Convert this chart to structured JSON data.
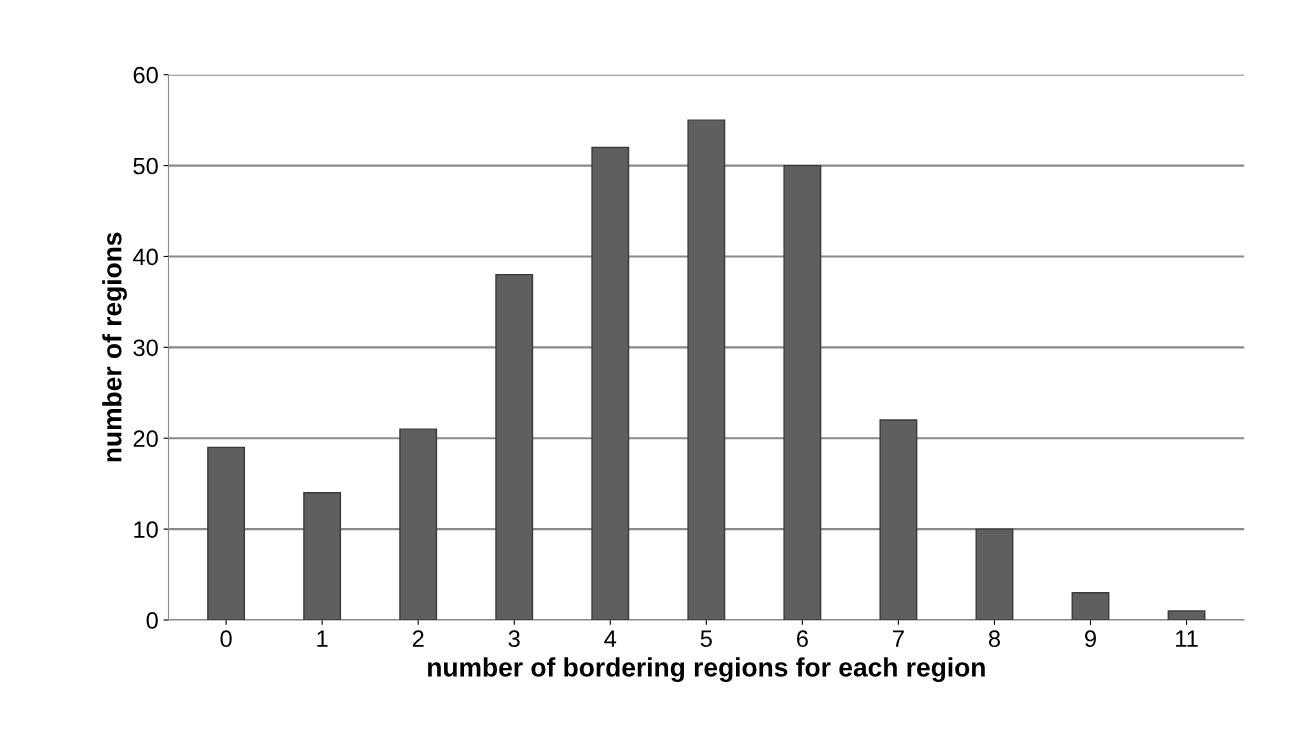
{
  "chart_data": {
    "type": "bar",
    "xlabel": "number of bordering regions for each region",
    "ylabel": "number of regions",
    "categories": [
      "0",
      "1",
      "2",
      "3",
      "4",
      "5",
      "6",
      "7",
      "8",
      "9",
      "11"
    ],
    "values": [
      19,
      14,
      21,
      38,
      52,
      55,
      50,
      22,
      10,
      3,
      1
    ],
    "color": "#5f5f5f",
    "ylim": [
      0,
      60
    ],
    "yticks": [
      0,
      10,
      20,
      30,
      40,
      50,
      60
    ],
    "grid": "y",
    "legend": false
  }
}
